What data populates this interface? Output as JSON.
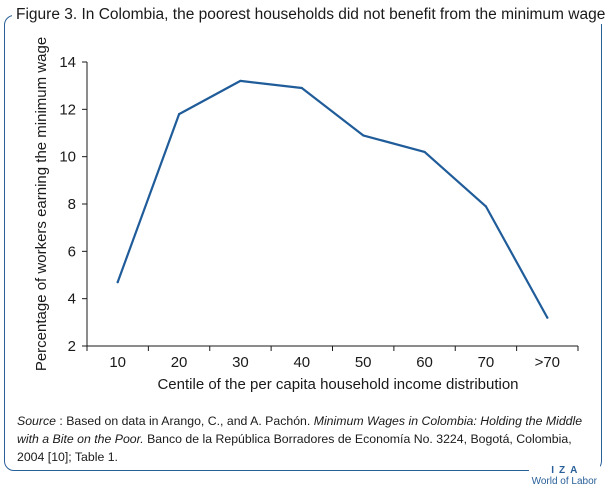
{
  "figure": {
    "title": "Figure 3. In Colombia, the poorest households did not benefit from the minimum wage",
    "source_label": "Source",
    "source_pre": " : Based on data in Arango, C., and A. Pachón. ",
    "source_italic": "Minimum Wages in Colombia: Holding the Middle with a Bite on the Poor.",
    "source_post": " Banco de la República Borradores de Economía No. 3224, Bogotá, Colombia, 2004 [10]; Table 1.",
    "logo_top": "IZA",
    "logo_bottom": "World of Labor"
  },
  "colors": {
    "line": "#1f5c99",
    "frame": "#2a6099",
    "axis": "#1a1a1a"
  },
  "chart_data": {
    "type": "line",
    "title": "",
    "xlabel": "Centile of the per capita household income distribution",
    "ylabel": "Percentage of workers earning the minimum wage",
    "categories": [
      "10",
      "20",
      "30",
      "40",
      "50",
      "60",
      "70",
      ">70"
    ],
    "series": [
      {
        "values": [
          4.7,
          11.8,
          13.2,
          12.9,
          10.9,
          10.2,
          7.9,
          3.2
        ]
      }
    ],
    "yticks": [
      2,
      4,
      6,
      8,
      10,
      12,
      14
    ],
    "ylim": [
      2,
      14
    ],
    "grid": false,
    "legend": "none"
  }
}
